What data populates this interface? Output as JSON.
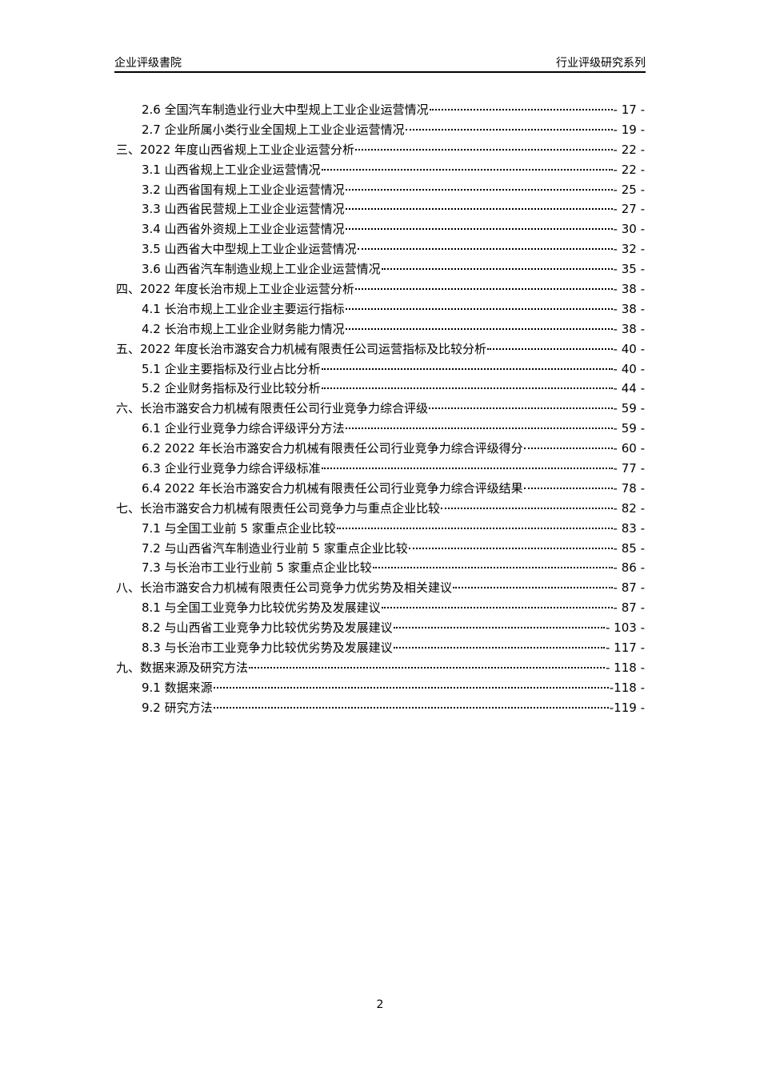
{
  "header": {
    "left": "企业评级書院",
    "right": "行业评级研究系列"
  },
  "toc": [
    {
      "level": 2,
      "label": "2.6 全国汽车制造业行业大中型规上工业企业运营情况",
      "page": "- 17 -"
    },
    {
      "level": 2,
      "label": "2.7 企业所属小类行业全国规上工业企业运营情况",
      "page": "- 19 -"
    },
    {
      "level": 1,
      "label": "三、2022 年度山西省规上工业企业运营分析",
      "page": "- 22 -"
    },
    {
      "level": 2,
      "label": "3.1 山西省规上工业企业运营情况",
      "page": "- 22 -"
    },
    {
      "level": 2,
      "label": "3.2 山西省国有规上工业企业运营情况",
      "page": "- 25 -"
    },
    {
      "level": 2,
      "label": "3.3 山西省民营规上工业企业运营情况",
      "page": "- 27 -"
    },
    {
      "level": 2,
      "label": "3.4 山西省外资规上工业企业运营情况",
      "page": "- 30 -"
    },
    {
      "level": 2,
      "label": "3.5 山西省大中型规上工业企业运营情况",
      "page": "- 32 -"
    },
    {
      "level": 2,
      "label": "3.6 山西省汽车制造业规上工业企业运营情况",
      "page": "- 35 -"
    },
    {
      "level": 1,
      "label": "四、2022 年度长治市规上工业企业运营分析",
      "page": "- 38 -"
    },
    {
      "level": 2,
      "label": "4.1 长治市规上工业企业主要运行指标",
      "page": "- 38 -"
    },
    {
      "level": 2,
      "label": "4.2 长治市规上工业企业财务能力情况",
      "page": "- 38 -"
    },
    {
      "level": 1,
      "label": "五、2022 年度长治市潞安合力机械有限责任公司运营指标及比较分析",
      "page": "- 40 -"
    },
    {
      "level": 2,
      "label": "5.1 企业主要指标及行业占比分析",
      "page": "- 40 -"
    },
    {
      "level": 2,
      "label": "5.2 企业财务指标及行业比较分析",
      "page": "- 44 -"
    },
    {
      "level": 1,
      "label": "六、长治市潞安合力机械有限责任公司行业竞争力综合评级",
      "page": "- 59 -"
    },
    {
      "level": 2,
      "label": "6.1 企业行业竞争力综合评级评分方法",
      "page": "- 59 -"
    },
    {
      "level": 2,
      "label": "6.2 2022 年长治市潞安合力机械有限责任公司行业竞争力综合评级得分",
      "page": "- 60 -"
    },
    {
      "level": 2,
      "label": "6.3 企业行业竞争力综合评级标准",
      "page": "- 77 -"
    },
    {
      "level": 2,
      "label": "6.4 2022 年长治市潞安合力机械有限责任公司行业竞争力综合评级结果",
      "page": "- 78 -"
    },
    {
      "level": 1,
      "label": "七、长治市潞安合力机械有限责任公司竞争力与重点企业比较",
      "page": "- 82 -"
    },
    {
      "level": 2,
      "label": "7.1 与全国工业前 5 家重点企业比较",
      "page": "- 83 -"
    },
    {
      "level": 2,
      "label": "7.2 与山西省汽车制造业行业前 5 家重点企业比较",
      "page": "- 85 -"
    },
    {
      "level": 2,
      "label": "7.3 与长治市工业行业前 5 家重点企业比较",
      "page": "- 86 -"
    },
    {
      "level": 1,
      "label": "八、长治市潞安合力机械有限责任公司竞争力优劣势及相关建议",
      "page": "- 87 -"
    },
    {
      "level": 2,
      "label": "8.1 与全国工业竞争力比较优劣势及发展建议",
      "page": "- 87 -"
    },
    {
      "level": 2,
      "label": "8.2 与山西省工业竞争力比较优劣势及发展建议",
      "page": "- 103 -"
    },
    {
      "level": 2,
      "label": "8.3 与长治市工业竞争力比较优劣势及发展建议",
      "page": "- 117 -"
    },
    {
      "level": 1,
      "label": "九、数据来源及研究方法",
      "page": "- 118 -"
    },
    {
      "level": 2,
      "label": "9.1 数据来源",
      "page": "-118 -"
    },
    {
      "level": 2,
      "label": "9.2 研究方法",
      "page": "-119 -"
    }
  ],
  "footer": {
    "page_number": "2"
  }
}
